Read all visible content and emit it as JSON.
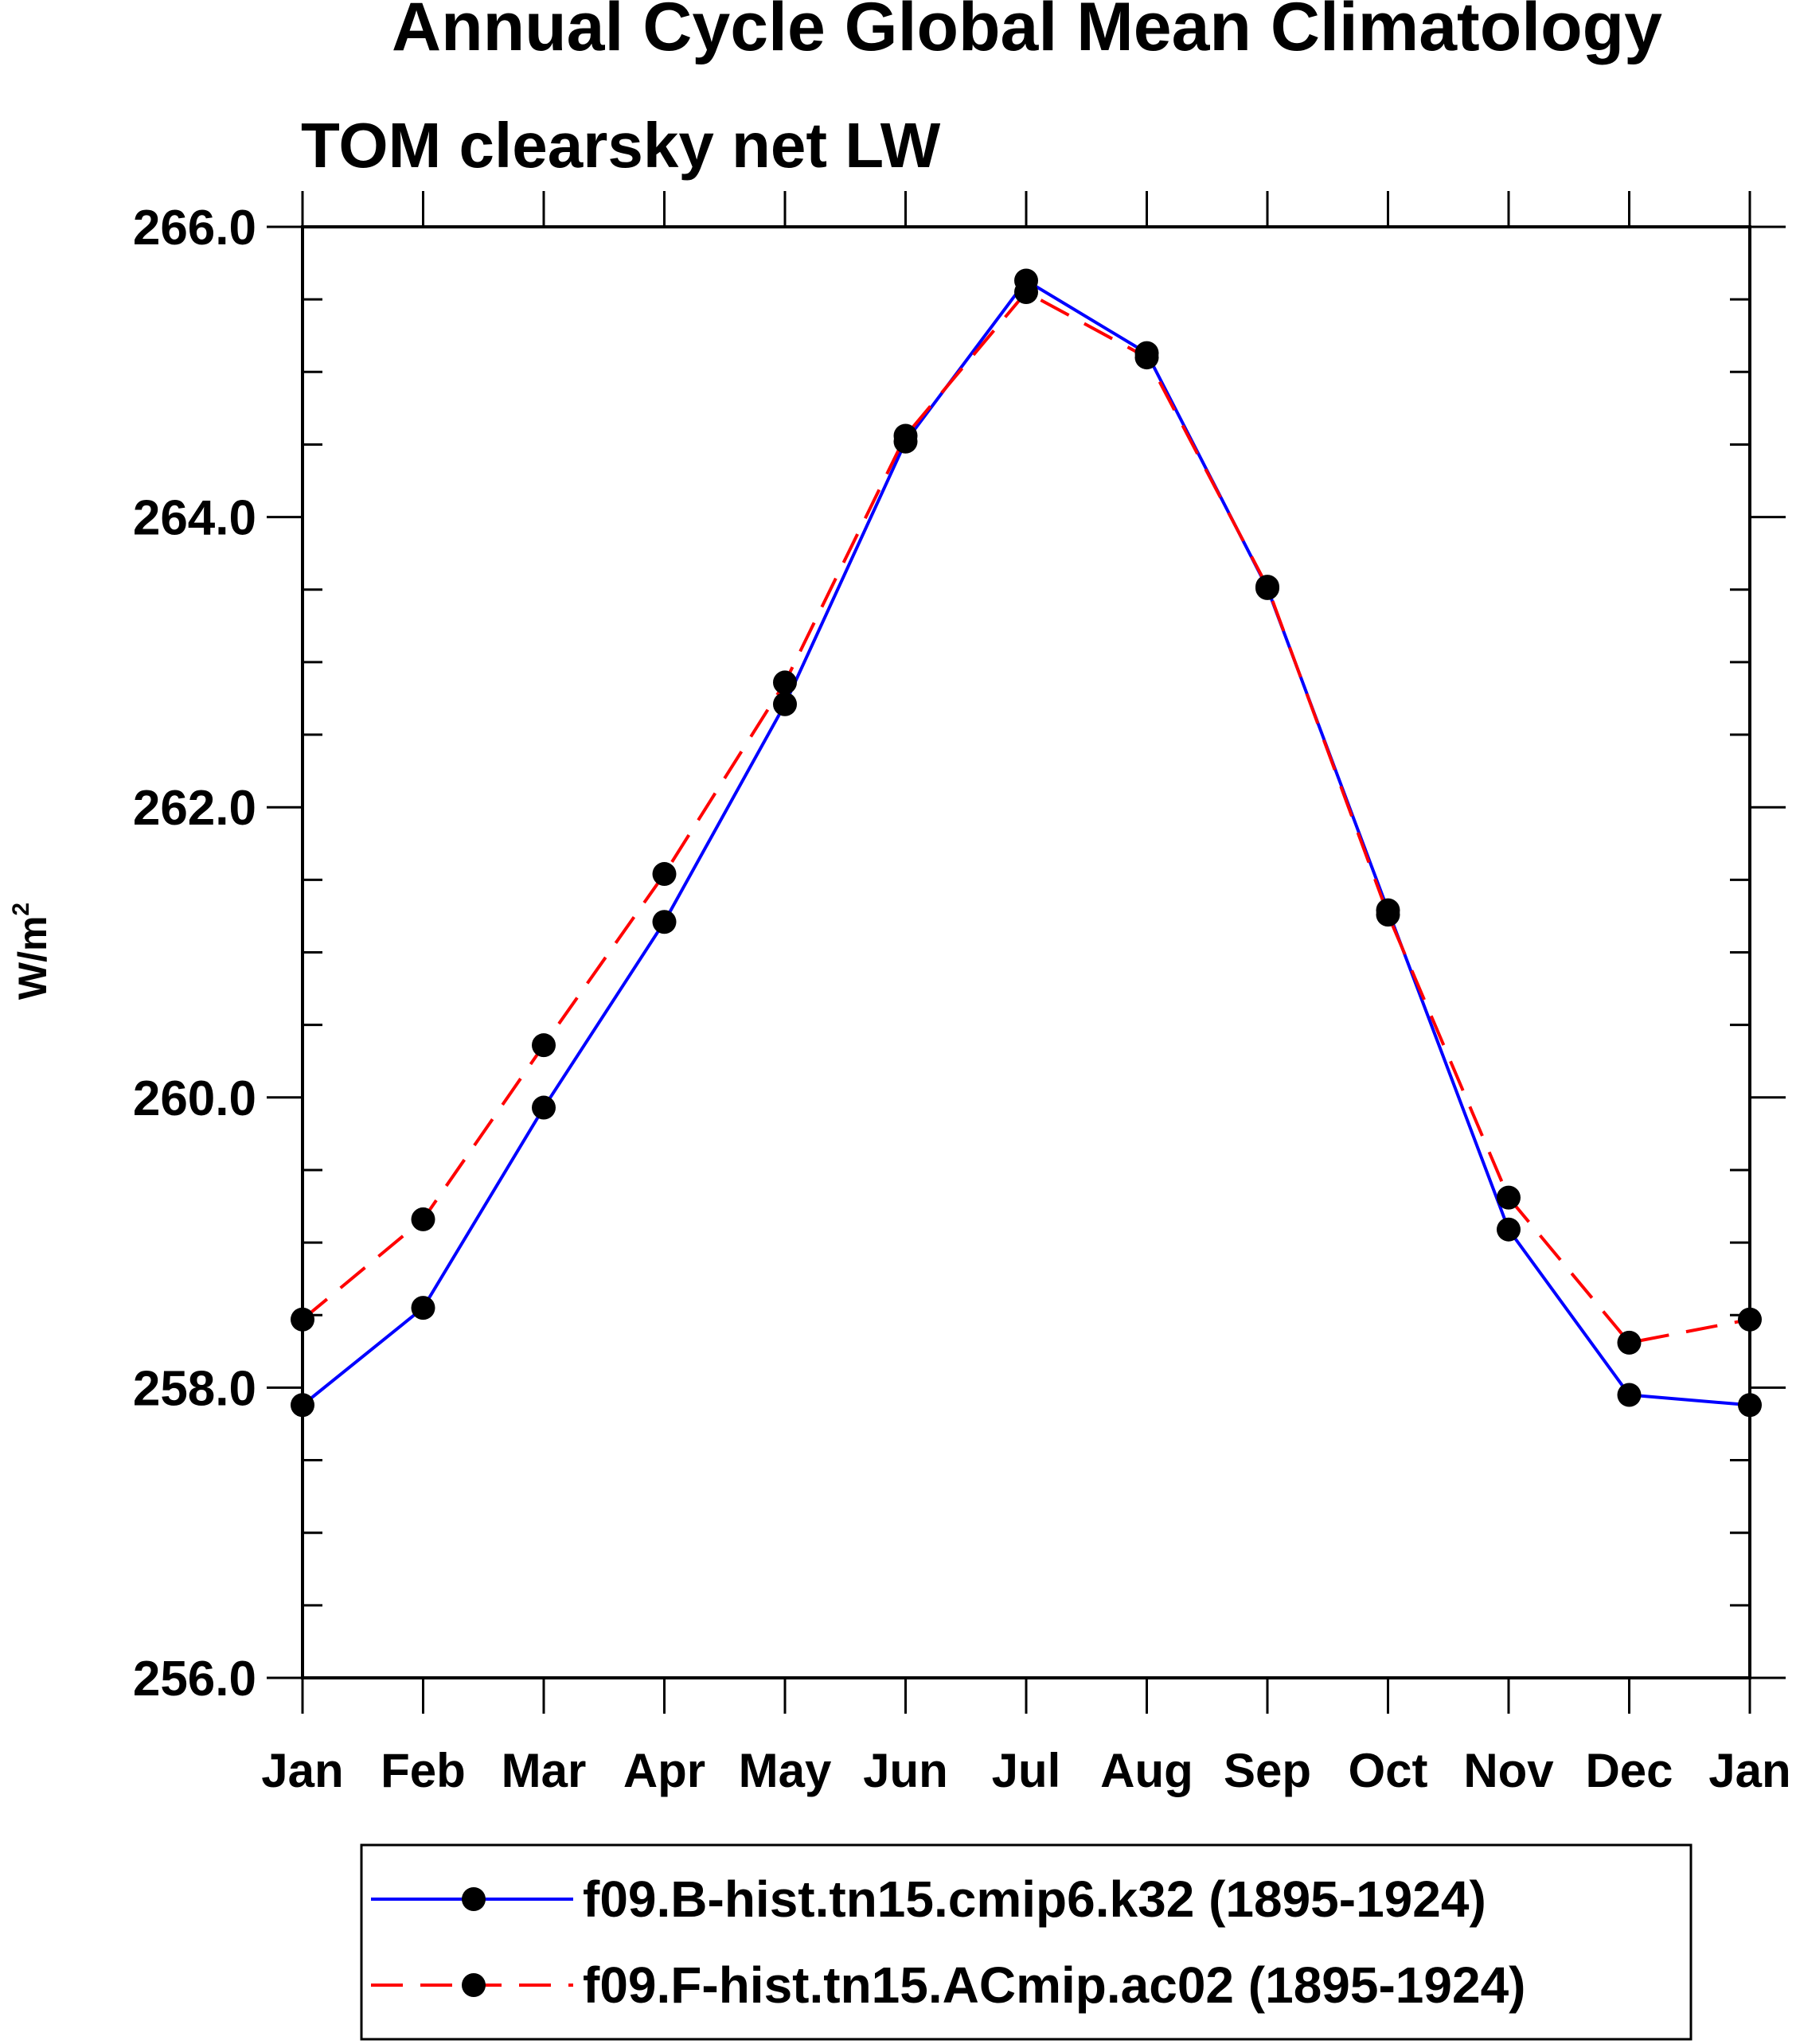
{
  "chart_data": {
    "type": "line",
    "title": "Annual Cycle Global Mean Climatology",
    "subtitle": "TOM clearsky net LW",
    "ylabel": "W/m",
    "ylabel_superscript": "2",
    "ylim": [
      256.0,
      266.0
    ],
    "yticks": [
      "256.0",
      "258.0",
      "260.0",
      "262.0",
      "264.0",
      "266.0"
    ],
    "ytick_values": [
      256,
      258,
      260,
      262,
      264,
      266
    ],
    "categories": [
      "Jan",
      "Feb",
      "Mar",
      "Apr",
      "May",
      "Jun",
      "Jul",
      "Aug",
      "Sep",
      "Oct",
      "Nov",
      "Dec",
      "Jan"
    ],
    "series": [
      {
        "name": "f09.B-hist.tn15.cmip6.k32 (1895-1924)",
        "color": "#0000ff",
        "dash": "solid",
        "values": [
          257.88,
          258.55,
          259.93,
          261.21,
          262.71,
          264.52,
          265.63,
          265.13,
          263.51,
          261.29,
          259.09,
          257.95,
          257.88
        ]
      },
      {
        "name": "f09.F-hist.tn15.ACmip.ac02 (1895-1924)",
        "color": "#ff0000",
        "dash": "dashed",
        "values": [
          258.47,
          259.16,
          260.36,
          261.54,
          262.86,
          264.56,
          265.55,
          265.1,
          263.52,
          261.26,
          259.31,
          258.31,
          258.47
        ]
      }
    ]
  }
}
